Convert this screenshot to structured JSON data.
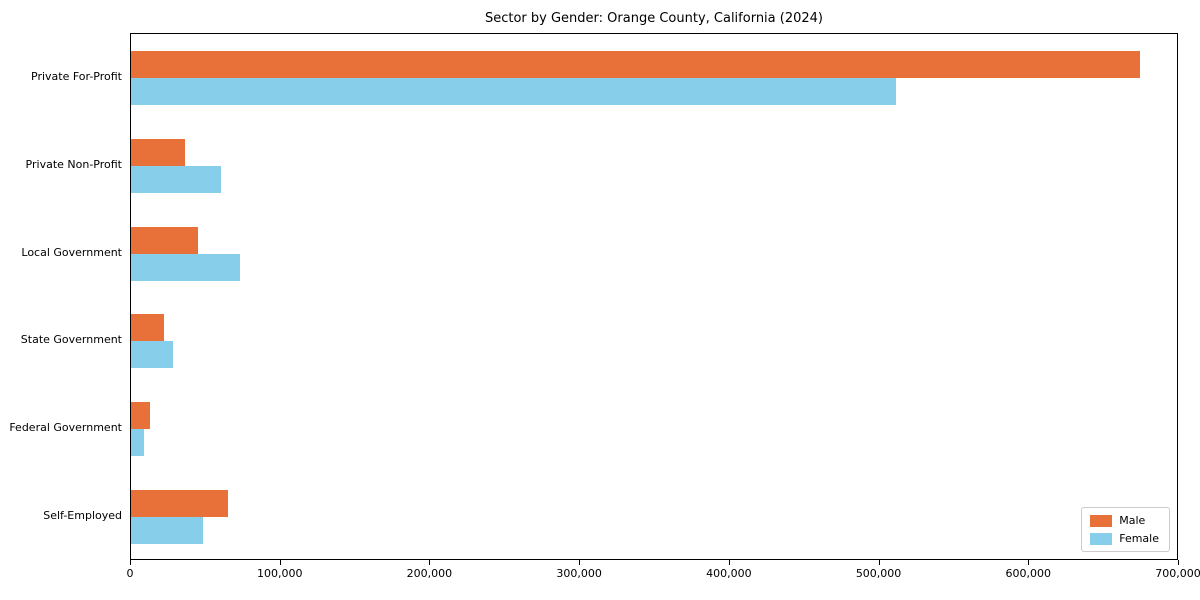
{
  "chart_data": {
    "type": "bar",
    "orientation": "horizontal",
    "title": "Sector by Gender: Orange County, California (2024)",
    "xlabel": "",
    "ylabel": "",
    "categories": [
      "Private For-Profit",
      "Private Non-Profit",
      "Local Government",
      "State Government",
      "Federal Government",
      "Self-Employed"
    ],
    "series": [
      {
        "name": "Male",
        "color": "#e8713a",
        "values": [
          675000,
          36000,
          45000,
          22000,
          13000,
          65000
        ]
      },
      {
        "name": "Female",
        "color": "#87ceeb",
        "values": [
          512000,
          60000,
          73000,
          28000,
          9000,
          48000
        ]
      }
    ],
    "xlim": [
      0,
      700000
    ],
    "x_ticks": [
      0,
      100000,
      200000,
      300000,
      400000,
      500000,
      600000,
      700000
    ],
    "x_tick_labels": [
      "0",
      "100,000",
      "200,000",
      "300,000",
      "400,000",
      "500,000",
      "600,000",
      "700,000"
    ],
    "grid": "off",
    "legend_position": "lower right"
  }
}
